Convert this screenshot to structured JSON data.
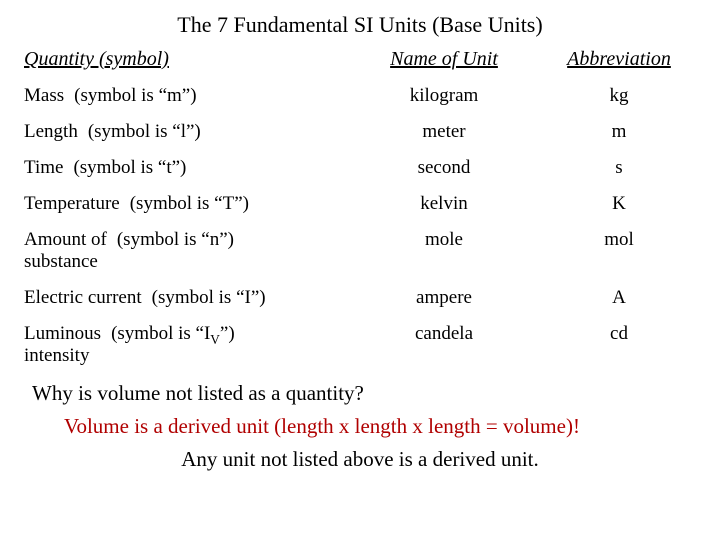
{
  "title": "The 7 Fundamental SI Units (Base Units)",
  "headers": {
    "quantity": "Quantity (symbol)",
    "name": "Name of Unit",
    "abbr": "Abbreviation"
  },
  "rows": [
    {
      "quantity": "Mass",
      "symbol": "(symbol is “m”)",
      "unit": "kilogram",
      "abbr": "kg"
    },
    {
      "quantity": "Length",
      "symbol": "(symbol is “l”)",
      "unit": "meter",
      "abbr": "m"
    },
    {
      "quantity": "Time",
      "symbol": "(symbol is “t”)",
      "unit": "second",
      "abbr": "s"
    },
    {
      "quantity": "Temperature",
      "symbol": "(symbol is “T”)",
      "unit": "kelvin",
      "abbr": "K"
    },
    {
      "quantity": "Amount of\nsubstance",
      "symbol": "(symbol is “n”)",
      "unit": "mole",
      "abbr": "mol"
    },
    {
      "quantity": "Electric current",
      "symbol": "(symbol is “I”)",
      "unit": "ampere",
      "abbr": "A"
    },
    {
      "quantity": "Luminous\nintensity",
      "symbol": "_IV_",
      "symbol_prefix": "(symbol is “I",
      "symbol_sub": "V",
      "symbol_suffix": "”)",
      "unit": "candela",
      "abbr": "cd"
    }
  ],
  "question": "Why is volume not listed as a quantity?",
  "answer": "Volume is a derived unit (length x length x length = volume)!",
  "footnote": "Any unit not listed above is a derived unit.",
  "colors": {
    "text": "#000000",
    "answer": "#b00000",
    "background": "#ffffff"
  },
  "font": {
    "family": "Times New Roman",
    "title_size": 22,
    "header_size": 20,
    "body_size": 19,
    "note_size": 21
  }
}
